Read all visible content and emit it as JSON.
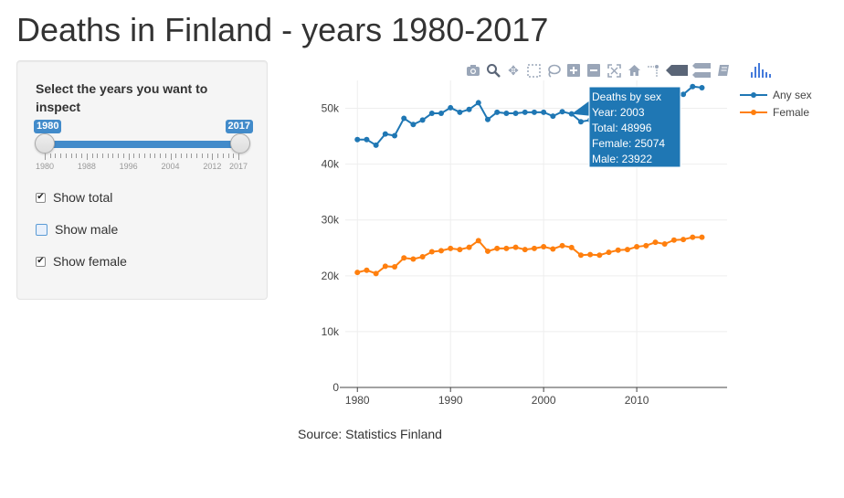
{
  "page": {
    "title": "Deaths in Finland - years 1980-2017",
    "source": "Source: Statistics Finland"
  },
  "sidebar": {
    "slider_label": "Select the years you want to inspect",
    "range_min": 1980,
    "range_max": 2017,
    "selected_from": "1980",
    "selected_to": "2017",
    "tick_labels": [
      "1980",
      "1988",
      "1996",
      "2004",
      "2012",
      "2017"
    ],
    "checkboxes": [
      {
        "label": "Show total",
        "checked": true
      },
      {
        "label": "Show male",
        "checked": false
      },
      {
        "label": "Show female",
        "checked": true
      }
    ]
  },
  "modebar": {
    "icons": [
      "camera-icon",
      "zoom-icon",
      "pan-icon",
      "box-select-icon",
      "lasso-select-icon",
      "zoom-in-icon",
      "zoom-out-icon",
      "autoscale-icon",
      "reset-axes-icon",
      "spike-lines-icon",
      "hover-closest-icon",
      "hover-compare-icon",
      "edit-chart-icon",
      "plotly-logo-icon"
    ],
    "color": "#9aa6b8"
  },
  "chart_data": {
    "type": "line",
    "title": "",
    "xlabel": "",
    "ylabel": "",
    "xlim": [
      1978.7,
      2019.7
    ],
    "ylim": [
      0,
      55000
    ],
    "x_ticks": [
      1980,
      1990,
      2000,
      2010
    ],
    "x_tick_labels": [
      "1980",
      "1990",
      "2000",
      "2010"
    ],
    "y_ticks": [
      0,
      10000,
      20000,
      30000,
      40000,
      50000
    ],
    "y_tick_labels": [
      "0",
      "10k",
      "20k",
      "30k",
      "40k",
      "50k"
    ],
    "grid": true,
    "legend_position": "top-right",
    "x": [
      1980,
      1981,
      1982,
      1983,
      1984,
      1985,
      1986,
      1987,
      1988,
      1989,
      1990,
      1991,
      1992,
      1993,
      1994,
      1995,
      1996,
      1997,
      1998,
      1999,
      2000,
      2001,
      2002,
      2003,
      2004,
      2005,
      2006,
      2007,
      2008,
      2009,
      2010,
      2011,
      2012,
      2013,
      2014,
      2015,
      2016,
      2017
    ],
    "series": [
      {
        "name": "Any sex",
        "color": "#1f77b4",
        "values": [
          44400,
          44400,
          43400,
          45400,
          45100,
          48200,
          47100,
          47900,
          49100,
          49100,
          50100,
          49300,
          49800,
          51000,
          48000,
          49300,
          49100,
          49100,
          49300,
          49300,
          49300,
          48600,
          49400,
          48996,
          47600,
          47900,
          48000,
          49100,
          49300,
          49900,
          50900,
          51200,
          51500,
          51500,
          52400,
          52500,
          53900,
          53700
        ]
      },
      {
        "name": "Female",
        "color": "#ff7f0e",
        "values": [
          20600,
          21000,
          20400,
          21700,
          21600,
          23200,
          23000,
          23400,
          24300,
          24500,
          24900,
          24700,
          25100,
          26300,
          24400,
          24900,
          24900,
          25100,
          24700,
          24900,
          25200,
          24800,
          25400,
          25074,
          23700,
          23800,
          23700,
          24200,
          24600,
          24700,
          25200,
          25400,
          26000,
          25700,
          26400,
          26500,
          26900,
          26900
        ]
      }
    ],
    "tooltip": {
      "title": "Deaths by sex",
      "lines": [
        "Year:  2003",
        "Total:  48996",
        "Female:  25074",
        "Male:  23922"
      ],
      "bg": "#1f77b4"
    }
  }
}
